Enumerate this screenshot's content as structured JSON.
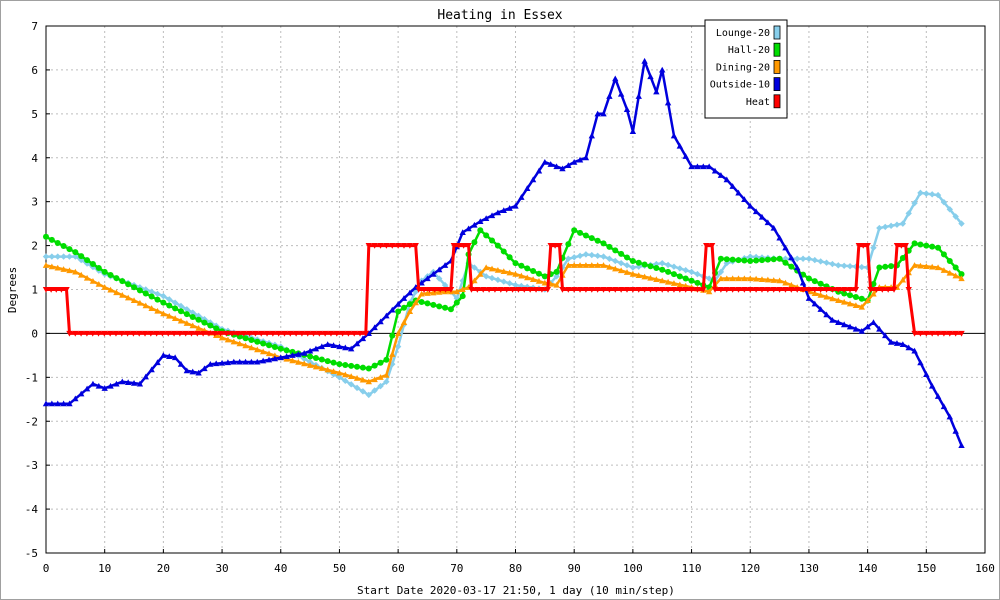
{
  "chart_data": {
    "type": "line",
    "title": "Heating in Essex",
    "xlabel": "Start Date 2020-03-17 21:50, 1 day (10 min/step)",
    "ylabel": "Degrees",
    "xlim": [
      0,
      160
    ],
    "ylim": [
      -5,
      7
    ],
    "x_ticks": [
      0,
      10,
      20,
      30,
      40,
      50,
      60,
      70,
      80,
      90,
      100,
      110,
      120,
      130,
      140,
      150,
      160
    ],
    "y_ticks": [
      -5,
      -4,
      -3,
      -2,
      -1,
      0,
      1,
      2,
      3,
      4,
      5,
      6,
      7
    ],
    "grid": true,
    "legend_position": "top-right",
    "series": [
      {
        "name": "Lounge-20",
        "color": "#87ceeb",
        "marker": "diamond",
        "points": [
          [
            0,
            1.75
          ],
          [
            5,
            1.75
          ],
          [
            10,
            1.35
          ],
          [
            20,
            0.85
          ],
          [
            30,
            0.1
          ],
          [
            40,
            -0.3
          ],
          [
            50,
            -1.0
          ],
          [
            55,
            -1.4
          ],
          [
            58,
            -1.1
          ],
          [
            60,
            -0.3
          ],
          [
            62,
            0.7
          ],
          [
            64,
            1.2
          ],
          [
            66,
            1.4
          ],
          [
            68,
            1.1
          ],
          [
            70,
            0.8
          ],
          [
            72,
            1.6
          ],
          [
            75,
            1.3
          ],
          [
            80,
            1.1
          ],
          [
            85,
            1.0
          ],
          [
            87,
            1.3
          ],
          [
            89,
            1.7
          ],
          [
            92,
            1.8
          ],
          [
            95,
            1.75
          ],
          [
            100,
            1.5
          ],
          [
            105,
            1.6
          ],
          [
            110,
            1.4
          ],
          [
            114,
            1.2
          ],
          [
            116,
            1.6
          ],
          [
            120,
            1.75
          ],
          [
            125,
            1.7
          ],
          [
            130,
            1.7
          ],
          [
            135,
            1.55
          ],
          [
            140,
            1.5
          ],
          [
            142,
            2.4
          ],
          [
            146,
            2.5
          ],
          [
            149,
            3.2
          ],
          [
            152,
            3.15
          ],
          [
            156,
            2.5
          ]
        ]
      },
      {
        "name": "Hall-20",
        "color": "#00dd00",
        "marker": "circle",
        "points": [
          [
            0,
            2.2
          ],
          [
            5,
            1.85
          ],
          [
            10,
            1.4
          ],
          [
            20,
            0.7
          ],
          [
            30,
            0.05
          ],
          [
            40,
            -0.35
          ],
          [
            50,
            -0.7
          ],
          [
            55,
            -0.8
          ],
          [
            58,
            -0.6
          ],
          [
            60,
            0.5
          ],
          [
            63,
            0.75
          ],
          [
            66,
            0.65
          ],
          [
            69,
            0.55
          ],
          [
            71,
            0.85
          ],
          [
            72,
            1.8
          ],
          [
            74,
            2.35
          ],
          [
            77,
            2.0
          ],
          [
            80,
            1.6
          ],
          [
            85,
            1.3
          ],
          [
            87,
            1.4
          ],
          [
            90,
            2.35
          ],
          [
            95,
            2.05
          ],
          [
            100,
            1.65
          ],
          [
            105,
            1.45
          ],
          [
            110,
            1.2
          ],
          [
            113,
            1.05
          ],
          [
            115,
            1.7
          ],
          [
            120,
            1.65
          ],
          [
            125,
            1.7
          ],
          [
            130,
            1.25
          ],
          [
            135,
            0.95
          ],
          [
            140,
            0.75
          ],
          [
            142,
            1.5
          ],
          [
            145,
            1.55
          ],
          [
            148,
            2.05
          ],
          [
            152,
            1.95
          ],
          [
            156,
            1.35
          ]
        ]
      },
      {
        "name": "Dining-20",
        "color": "#ff9900",
        "marker": "triangle-up",
        "points": [
          [
            0,
            1.55
          ],
          [
            5,
            1.4
          ],
          [
            10,
            1.05
          ],
          [
            20,
            0.45
          ],
          [
            30,
            -0.1
          ],
          [
            40,
            -0.55
          ],
          [
            50,
            -0.9
          ],
          [
            55,
            -1.1
          ],
          [
            58,
            -0.95
          ],
          [
            60,
            0.0
          ],
          [
            62,
            0.5
          ],
          [
            64,
            0.9
          ],
          [
            68,
            0.95
          ],
          [
            70,
            0.95
          ],
          [
            72,
            1.05
          ],
          [
            75,
            1.5
          ],
          [
            80,
            1.35
          ],
          [
            85,
            1.15
          ],
          [
            87,
            1.1
          ],
          [
            89,
            1.55
          ],
          [
            95,
            1.55
          ],
          [
            100,
            1.35
          ],
          [
            105,
            1.2
          ],
          [
            110,
            1.05
          ],
          [
            113,
            0.95
          ],
          [
            115,
            1.25
          ],
          [
            120,
            1.25
          ],
          [
            125,
            1.2
          ],
          [
            130,
            0.95
          ],
          [
            135,
            0.75
          ],
          [
            139,
            0.6
          ],
          [
            142,
            1.05
          ],
          [
            145,
            1.05
          ],
          [
            148,
            1.55
          ],
          [
            152,
            1.5
          ],
          [
            156,
            1.25
          ]
        ]
      },
      {
        "name": "Outside-10",
        "color": "#0000dd",
        "marker": "triangle-up",
        "points": [
          [
            0,
            -1.6
          ],
          [
            4,
            -1.6
          ],
          [
            8,
            -1.15
          ],
          [
            10,
            -1.25
          ],
          [
            13,
            -1.1
          ],
          [
            16,
            -1.15
          ],
          [
            20,
            -0.5
          ],
          [
            22,
            -0.55
          ],
          [
            24,
            -0.85
          ],
          [
            26,
            -0.9
          ],
          [
            28,
            -0.7
          ],
          [
            32,
            -0.65
          ],
          [
            36,
            -0.65
          ],
          [
            40,
            -0.55
          ],
          [
            44,
            -0.45
          ],
          [
            48,
            -0.25
          ],
          [
            52,
            -0.35
          ],
          [
            55,
            0.0
          ],
          [
            58,
            0.4
          ],
          [
            61,
            0.8
          ],
          [
            63,
            1.05
          ],
          [
            66,
            1.35
          ],
          [
            69,
            1.65
          ],
          [
            71,
            2.3
          ],
          [
            74,
            2.55
          ],
          [
            77,
            2.75
          ],
          [
            80,
            2.9
          ],
          [
            83,
            3.5
          ],
          [
            85,
            3.9
          ],
          [
            88,
            3.75
          ],
          [
            90,
            3.9
          ],
          [
            92,
            4.0
          ],
          [
            94,
            5.0
          ],
          [
            95,
            5.0
          ],
          [
            97,
            5.8
          ],
          [
            99,
            5.1
          ],
          [
            100,
            4.6
          ],
          [
            102,
            6.2
          ],
          [
            104,
            5.5
          ],
          [
            105,
            6.0
          ],
          [
            107,
            4.5
          ],
          [
            110,
            3.8
          ],
          [
            113,
            3.8
          ],
          [
            116,
            3.5
          ],
          [
            120,
            2.9
          ],
          [
            124,
            2.4
          ],
          [
            128,
            1.5
          ],
          [
            130,
            0.8
          ],
          [
            134,
            0.3
          ],
          [
            139,
            0.05
          ],
          [
            141,
            0.25
          ],
          [
            144,
            -0.2
          ],
          [
            146,
            -0.25
          ],
          [
            148,
            -0.4
          ],
          [
            151,
            -1.2
          ],
          [
            154,
            -1.9
          ],
          [
            156,
            -2.55
          ]
        ]
      },
      {
        "name": "Heat",
        "color": "#ff0000",
        "marker": "triangle-down",
        "points": [
          [
            0,
            1.0
          ],
          [
            3.5,
            1.0
          ],
          [
            4,
            0.0
          ],
          [
            54.5,
            0.0
          ],
          [
            55,
            2.0
          ],
          [
            63,
            2.0
          ],
          [
            63.5,
            1.0
          ],
          [
            69,
            1.0
          ],
          [
            69.5,
            2.0
          ],
          [
            72,
            2.0
          ],
          [
            72.5,
            1.0
          ],
          [
            85.5,
            1.0
          ],
          [
            86,
            2.0
          ],
          [
            87.5,
            2.0
          ],
          [
            88,
            1.0
          ],
          [
            112,
            1.0
          ],
          [
            112.5,
            2.0
          ],
          [
            113.5,
            2.0
          ],
          [
            114,
            1.0
          ],
          [
            138,
            1.0
          ],
          [
            138.5,
            2.0
          ],
          [
            140,
            2.0
          ],
          [
            140.5,
            1.0
          ],
          [
            144.5,
            1.0
          ],
          [
            145,
            2.0
          ],
          [
            146.5,
            2.0
          ],
          [
            147,
            1.0
          ],
          [
            148,
            0.0
          ],
          [
            156,
            0.0
          ]
        ]
      }
    ]
  }
}
